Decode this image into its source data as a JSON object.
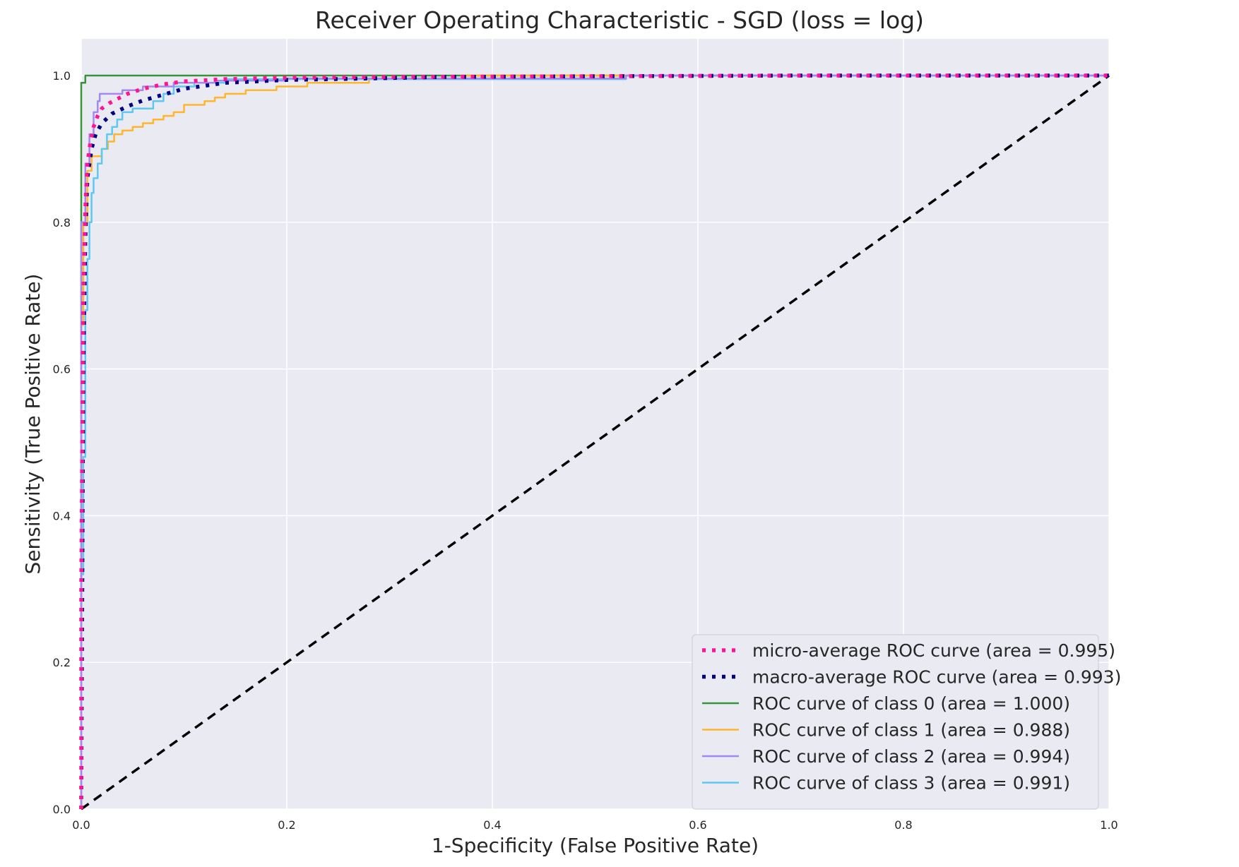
{
  "chart_data": {
    "type": "line",
    "title": "Receiver Operating Characteristic - SGD (loss = log)",
    "xlabel": "1-Specificity (False Positive Rate)",
    "ylabel": "Sensitivity (True Positive Rate)",
    "xlim": [
      0.0,
      1.0
    ],
    "ylim": [
      0.0,
      1.05
    ],
    "xticks": [
      "0.0",
      "0.2",
      "0.4",
      "0.6",
      "0.8",
      "1.0"
    ],
    "yticks": [
      "0.0",
      "0.2",
      "0.4",
      "0.6",
      "0.8",
      "1.0"
    ],
    "grid": true,
    "background": "#eaeaf2",
    "grid_color": "#ffffff",
    "legend_position": "lower right",
    "series": [
      {
        "name": "micro-average ROC curve (area = 0.995)",
        "color": "#ff1493",
        "style": "dotted",
        "x": [
          0.0,
          0.0,
          0.002,
          0.004,
          0.006,
          0.009,
          0.012,
          0.016,
          0.02,
          0.027,
          0.035,
          0.045,
          0.06,
          0.08,
          0.1,
          0.14,
          0.2,
          0.3,
          0.5,
          0.7,
          1.0
        ],
        "y": [
          0.0,
          0.3,
          0.7,
          0.82,
          0.88,
          0.91,
          0.93,
          0.945,
          0.955,
          0.962,
          0.968,
          0.975,
          0.982,
          0.988,
          0.992,
          0.995,
          0.997,
          0.998,
          0.999,
          1.0,
          1.0
        ]
      },
      {
        "name": "macro-average ROC curve (area = 0.993)",
        "color": "#000080",
        "style": "dotted",
        "x": [
          0.0,
          0.002,
          0.004,
          0.006,
          0.01,
          0.014,
          0.02,
          0.03,
          0.045,
          0.06,
          0.08,
          0.1,
          0.14,
          0.2,
          0.28,
          0.35,
          0.5,
          0.7,
          1.0
        ],
        "y": [
          0.0,
          0.6,
          0.78,
          0.86,
          0.9,
          0.92,
          0.935,
          0.948,
          0.958,
          0.966,
          0.974,
          0.982,
          0.99,
          0.994,
          0.996,
          0.998,
          0.999,
          1.0,
          1.0
        ]
      },
      {
        "name": "ROC curve of class 0 (area = 1.000)",
        "color": "#3a923a",
        "style": "solid",
        "x": [
          0.0,
          0.0,
          0.004,
          0.004,
          0.1,
          0.1,
          1.0
        ],
        "y": [
          0.0,
          0.99,
          0.99,
          1.0,
          1.0,
          1.0,
          1.0
        ]
      },
      {
        "name": "ROC curve of class 1 (area = 0.988)",
        "color": "#ffb52e",
        "style": "solid",
        "x": [
          0.0,
          0.0,
          0.002,
          0.002,
          0.006,
          0.006,
          0.01,
          0.01,
          0.02,
          0.02,
          0.026,
          0.026,
          0.032,
          0.032,
          0.04,
          0.04,
          0.05,
          0.05,
          0.06,
          0.06,
          0.07,
          0.07,
          0.08,
          0.08,
          0.09,
          0.09,
          0.1,
          0.1,
          0.12,
          0.12,
          0.13,
          0.13,
          0.14,
          0.14,
          0.16,
          0.16,
          0.19,
          0.19,
          0.22,
          0.22,
          0.28,
          0.28,
          0.37,
          0.37,
          1.0
        ],
        "y": [
          0.0,
          0.66,
          0.66,
          0.8,
          0.8,
          0.87,
          0.87,
          0.89,
          0.89,
          0.9,
          0.9,
          0.91,
          0.91,
          0.92,
          0.92,
          0.925,
          0.925,
          0.93,
          0.93,
          0.935,
          0.935,
          0.94,
          0.94,
          0.945,
          0.945,
          0.95,
          0.95,
          0.96,
          0.96,
          0.965,
          0.965,
          0.97,
          0.97,
          0.975,
          0.975,
          0.98,
          0.98,
          0.985,
          0.985,
          0.99,
          0.99,
          0.995,
          0.995,
          1.0,
          1.0
        ]
      },
      {
        "name": "ROC curve of class 2 (area = 0.994)",
        "color": "#a487f0",
        "style": "solid",
        "x": [
          0.0,
          0.0,
          0.004,
          0.004,
          0.008,
          0.008,
          0.012,
          0.012,
          0.016,
          0.016,
          0.018,
          0.018,
          0.04,
          0.04,
          0.06,
          0.06,
          0.09,
          0.09,
          0.13,
          0.13,
          0.2,
          0.2,
          0.53,
          0.53,
          1.0
        ],
        "y": [
          0.0,
          0.8,
          0.8,
          0.88,
          0.88,
          0.92,
          0.92,
          0.95,
          0.95,
          0.965,
          0.965,
          0.975,
          0.975,
          0.98,
          0.98,
          0.985,
          0.985,
          0.99,
          0.99,
          0.993,
          0.993,
          0.996,
          0.996,
          1.0,
          1.0
        ]
      },
      {
        "name": "ROC curve of class 3 (area = 0.991)",
        "color": "#5ec8f2",
        "style": "solid",
        "x": [
          0.0,
          0.0,
          0.002,
          0.002,
          0.004,
          0.004,
          0.006,
          0.006,
          0.008,
          0.008,
          0.01,
          0.01,
          0.012,
          0.012,
          0.016,
          0.016,
          0.02,
          0.02,
          0.025,
          0.025,
          0.03,
          0.03,
          0.035,
          0.035,
          0.04,
          0.04,
          0.05,
          0.05,
          0.07,
          0.07,
          0.08,
          0.08,
          0.09,
          0.09,
          0.11,
          0.11,
          0.14,
          0.14,
          0.53,
          0.53,
          1.0
        ],
        "y": [
          0.0,
          0.32,
          0.32,
          0.48,
          0.48,
          0.68,
          0.68,
          0.75,
          0.75,
          0.8,
          0.8,
          0.84,
          0.84,
          0.86,
          0.86,
          0.88,
          0.88,
          0.9,
          0.9,
          0.92,
          0.92,
          0.93,
          0.93,
          0.94,
          0.94,
          0.95,
          0.95,
          0.955,
          0.955,
          0.965,
          0.965,
          0.975,
          0.975,
          0.985,
          0.985,
          0.99,
          0.99,
          0.995,
          0.995,
          1.0,
          1.0
        ]
      },
      {
        "name": "",
        "color": "#000000",
        "style": "dashed",
        "x": [
          0.0,
          1.0
        ],
        "y": [
          0.0,
          1.0
        ]
      }
    ]
  }
}
